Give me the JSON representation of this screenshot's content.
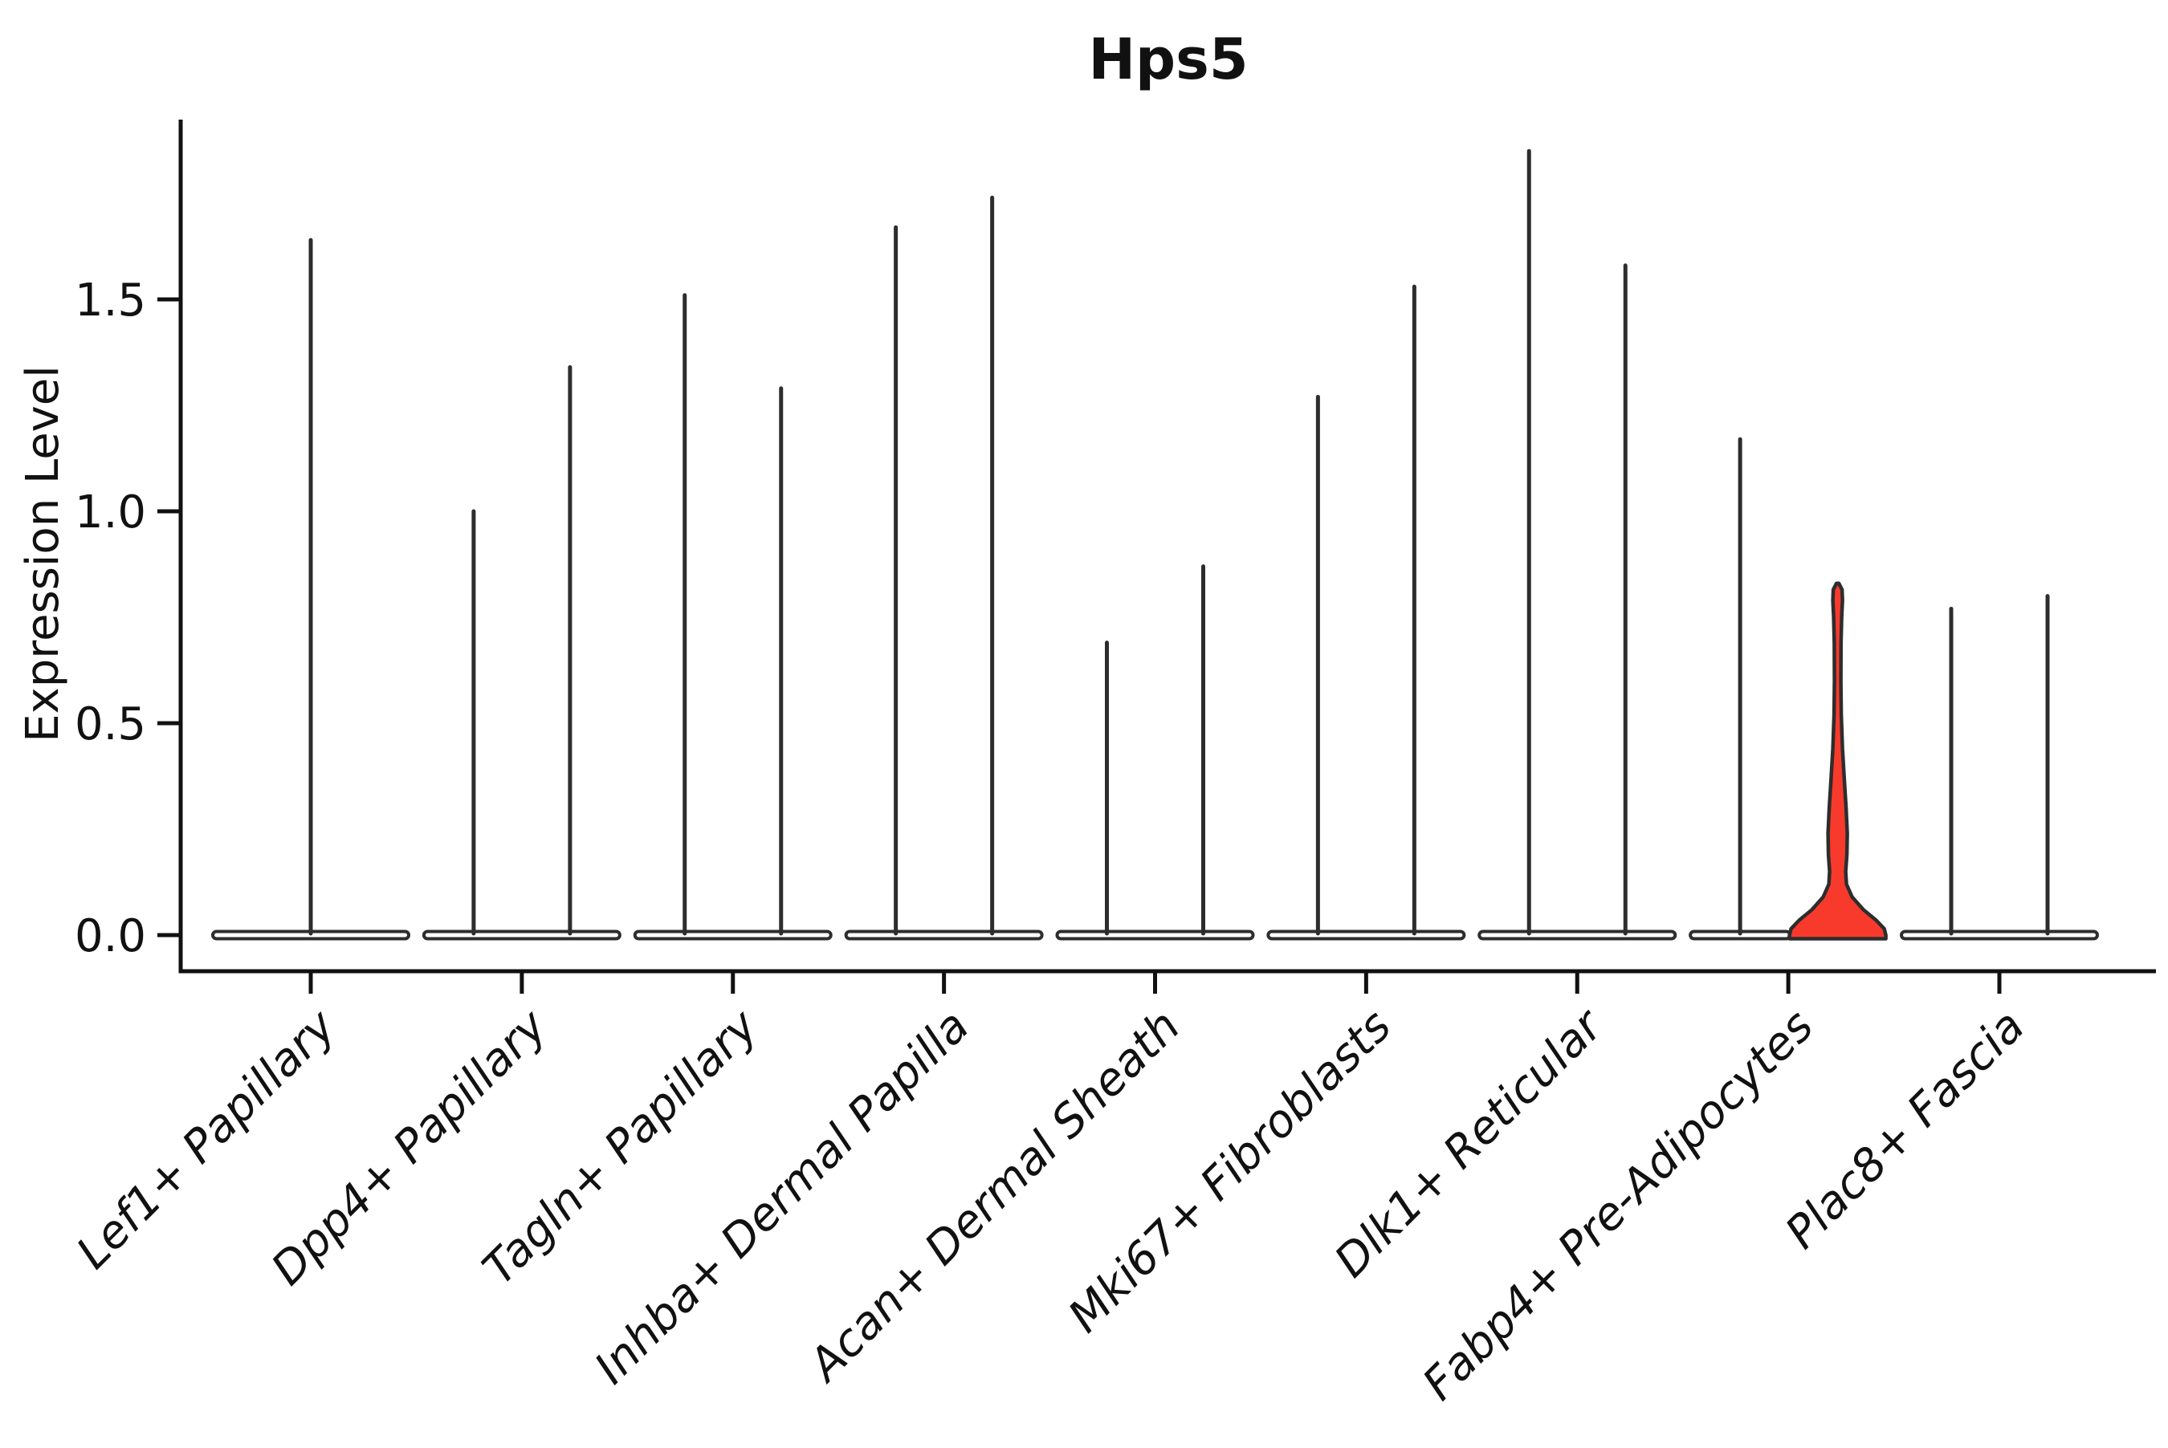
{
  "figure": {
    "title": "Hps5",
    "ylabel": "Expression Level"
  },
  "chart_data": {
    "type": "violin",
    "title": "Hps5",
    "xlabel": "",
    "ylabel": "Expression Level",
    "ylim": [
      -0.12,
      1.93
    ],
    "yticks": [
      0.0,
      0.5,
      1.0,
      1.5
    ],
    "ytick_labels": [
      "0.0",
      "0.5",
      "1.0",
      "1.5"
    ],
    "grid": false,
    "legend": null,
    "categories": [
      "Lef1+ Papillary",
      "Dpp4+ Papillary",
      "Tagln+ Papillary",
      "Inhba+ Dermal Papilla",
      "Acan+ Dermal Sheath",
      "Mki67+ Fibroblasts",
      "Dlk1+ Reticular",
      "Fabp4+ Pre-Adipocytes",
      "Plac8+ Fascia"
    ],
    "violins": [
      {
        "category": "Lef1+ Papillary",
        "group_violins": [
          {
            "position": "center",
            "peak": 1.64,
            "fill": "#ffffff",
            "shape": "spike"
          }
        ]
      },
      {
        "category": "Dpp4+ Papillary",
        "group_violins": [
          {
            "position": "left",
            "peak": 1.0,
            "fill": "#ffffff",
            "shape": "spike"
          },
          {
            "position": "right",
            "peak": 1.34,
            "fill": "#ffffff",
            "shape": "spike"
          }
        ]
      },
      {
        "category": "Tagln+ Papillary",
        "group_violins": [
          {
            "position": "left",
            "peak": 1.51,
            "fill": "#ffffff",
            "shape": "spike"
          },
          {
            "position": "right",
            "peak": 1.29,
            "fill": "#ffffff",
            "shape": "spike"
          }
        ]
      },
      {
        "category": "Inhba+ Dermal Papilla",
        "group_violins": [
          {
            "position": "left",
            "peak": 1.67,
            "fill": "#ffffff",
            "shape": "spike"
          },
          {
            "position": "right",
            "peak": 1.74,
            "fill": "#ffffff",
            "shape": "spike"
          }
        ]
      },
      {
        "category": "Acan+ Dermal Sheath",
        "group_violins": [
          {
            "position": "left",
            "peak": 0.69,
            "fill": "#ffffff",
            "shape": "spike"
          },
          {
            "position": "right",
            "peak": 0.87,
            "fill": "#ffffff",
            "shape": "spike"
          }
        ]
      },
      {
        "category": "Mki67+ Fibroblasts",
        "group_violins": [
          {
            "position": "left",
            "peak": 1.27,
            "fill": "#ffffff",
            "shape": "spike"
          },
          {
            "position": "right",
            "peak": 1.53,
            "fill": "#ffffff",
            "shape": "spike"
          }
        ]
      },
      {
        "category": "Dlk1+ Reticular",
        "group_violins": [
          {
            "position": "left",
            "peak": 1.85,
            "fill": "#ffffff",
            "shape": "spike"
          },
          {
            "position": "right",
            "peak": 1.58,
            "fill": "#ffffff",
            "shape": "spike"
          }
        ]
      },
      {
        "category": "Fabp4+ Pre-Adipocytes",
        "group_violins": [
          {
            "position": "left",
            "peak": 1.17,
            "fill": "#ffffff",
            "shape": "spike"
          },
          {
            "position": "right",
            "peak": 0.83,
            "fill": "#F83A2D",
            "shape": "violin"
          }
        ]
      },
      {
        "category": "Plac8+ Fascia",
        "group_violins": [
          {
            "position": "left",
            "peak": 0.77,
            "fill": "#ffffff",
            "shape": "spike"
          },
          {
            "position": "right",
            "peak": 0.8,
            "fill": "#ffffff",
            "shape": "spike"
          }
        ]
      }
    ],
    "highlight": {
      "category": "Fabp4+ Pre-Adipocytes",
      "position": "right",
      "fill": "#F83A2D",
      "peak": 0.83,
      "profile": [
        [
          0.83,
          1.5
        ],
        [
          0.815,
          5.5
        ],
        [
          0.79,
          6.0
        ],
        [
          0.75,
          5.0
        ],
        [
          0.69,
          4.2
        ],
        [
          0.6,
          4.0
        ],
        [
          0.52,
          4.5
        ],
        [
          0.44,
          6.0
        ],
        [
          0.36,
          8.5
        ],
        [
          0.3,
          10.5
        ],
        [
          0.24,
          12.0
        ],
        [
          0.19,
          11.5
        ],
        [
          0.15,
          10.0
        ],
        [
          0.12,
          11.0
        ],
        [
          0.09,
          18.0
        ],
        [
          0.06,
          32.0
        ],
        [
          0.035,
          48.0
        ],
        [
          0.015,
          58.0
        ],
        [
          0.0,
          60.0
        ]
      ]
    },
    "colors": {
      "outline": "#2d2d2d",
      "axis": "#111111",
      "text": "#111111",
      "highlight_fill": "#F83A2D",
      "default_fill": "#ffffff"
    }
  }
}
